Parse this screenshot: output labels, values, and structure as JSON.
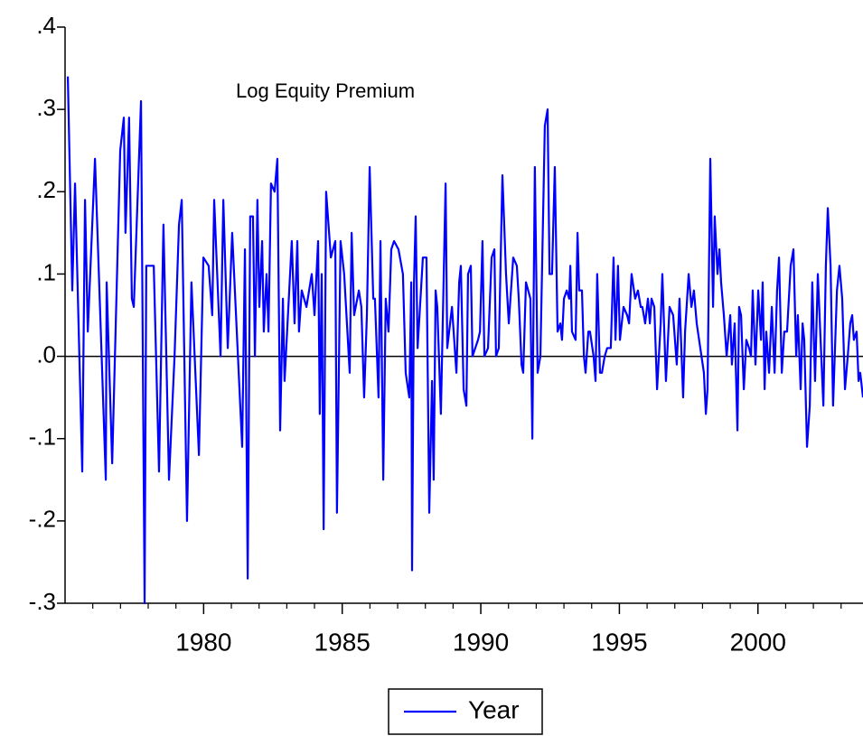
{
  "chart_data": {
    "type": "line",
    "annotation": "Log Equity Premium",
    "legend_box": "bottom-center",
    "zero_line": true,
    "xlim": [
      1975,
      2003.79
    ],
    "xticks": [
      1980,
      1985,
      1990,
      1995,
      2000
    ],
    "x_minor_ticks": [
      1976,
      1977,
      1978,
      1979,
      1981,
      1982,
      1983,
      1984,
      1986,
      1987,
      1988,
      1989,
      1991,
      1992,
      1993,
      1994,
      1996,
      1997,
      1998,
      1999,
      2001,
      2002,
      2003
    ],
    "ylim": [
      -0.3,
      0.4
    ],
    "yticks": [
      {
        "value": 0.4,
        "label": ".4"
      },
      {
        "value": 0.3,
        "label": ".3"
      },
      {
        "value": 0.2,
        "label": ".2"
      },
      {
        "value": 0.1,
        "label": ".1"
      },
      {
        "value": 0,
        "label": ".0"
      },
      {
        "value": -0.1,
        "label": "-.1"
      },
      {
        "value": -0.2,
        "label": "-.2"
      },
      {
        "value": -0.3,
        "label": "-.3"
      }
    ],
    "x": [
      1975.1,
      1975.26,
      1975.36,
      1975.62,
      1975.72,
      1975.82,
      1976.08,
      1976.47,
      1976.5,
      1976.7,
      1976.99,
      1977.12,
      1977.18,
      1977.31,
      1977.41,
      1977.48,
      1977.74,
      1977.87,
      1977.93,
      1978.2,
      1978.39,
      1978.55,
      1978.75,
      1978.95,
      1979.11,
      1979.21,
      1979.4,
      1979.56,
      1979.83,
      1979.99,
      1980.18,
      1980.31,
      1980.38,
      1980.61,
      1980.71,
      1980.87,
      1981.03,
      1981.39,
      1981.49,
      1981.59,
      1981.68,
      1981.78,
      1981.85,
      1981.94,
      1982.01,
      1982.11,
      1982.17,
      1982.27,
      1982.34,
      1982.43,
      1982.56,
      1982.66,
      1982.76,
      1982.86,
      1982.92,
      1983.18,
      1983.28,
      1983.38,
      1983.44,
      1983.54,
      1983.71,
      1983.9,
      1984.0,
      1984.13,
      1984.19,
      1984.26,
      1984.33,
      1984.42,
      1984.59,
      1984.75,
      1984.81,
      1984.94,
      1985.07,
      1985.27,
      1985.34,
      1985.43,
      1985.6,
      1985.69,
      1985.79,
      1985.89,
      1985.99,
      1986.12,
      1986.18,
      1986.31,
      1986.38,
      1986.48,
      1986.57,
      1986.67,
      1986.77,
      1986.87,
      1987.03,
      1987.19,
      1987.29,
      1987.42,
      1987.49,
      1987.52,
      1987.59,
      1987.65,
      1987.72,
      1987.91,
      1988.04,
      1988.14,
      1988.24,
      1988.3,
      1988.37,
      1988.43,
      1988.56,
      1988.73,
      1988.79,
      1988.96,
      1989.12,
      1989.22,
      1989.28,
      1989.38,
      1989.48,
      1989.54,
      1989.64,
      1989.7,
      1989.9,
      1989.97,
      1990.06,
      1990.13,
      1990.26,
      1990.39,
      1990.49,
      1990.55,
      1990.65,
      1990.78,
      1990.91,
      1991.01,
      1991.17,
      1991.3,
      1991.37,
      1991.47,
      1991.53,
      1991.63,
      1991.79,
      1991.86,
      1991.95,
      1992.05,
      1992.15,
      1992.31,
      1992.41,
      1992.48,
      1992.57,
      1992.67,
      1992.77,
      1992.87,
      1992.93,
      1993.0,
      1993.1,
      1993.19,
      1993.23,
      1993.29,
      1993.42,
      1993.49,
      1993.55,
      1993.65,
      1993.72,
      1993.78,
      1993.88,
      1993.94,
      1994.07,
      1994.14,
      1994.2,
      1994.3,
      1994.37,
      1994.47,
      1994.56,
      1994.69,
      1994.79,
      1994.86,
      1994.95,
      1995.02,
      1995.15,
      1995.28,
      1995.35,
      1995.44,
      1995.57,
      1995.67,
      1995.77,
      1995.83,
      1995.93,
      1996.03,
      1996.1,
      1996.16,
      1996.26,
      1996.36,
      1996.49,
      1996.55,
      1996.68,
      1996.81,
      1996.94,
      1997.07,
      1997.17,
      1997.3,
      1997.37,
      1997.5,
      1997.6,
      1997.69,
      1997.79,
      1997.92,
      1998.05,
      1998.12,
      1998.18,
      1998.28,
      1998.38,
      1998.44,
      1998.54,
      1998.61,
      1998.67,
      1998.77,
      1998.87,
      1999.0,
      1999.06,
      1999.16,
      1999.26,
      1999.32,
      1999.39,
      1999.49,
      1999.58,
      1999.68,
      1999.75,
      1999.81,
      1999.91,
      2000.01,
      2000.11,
      2000.17,
      2000.24,
      2000.3,
      2000.4,
      2000.5,
      2000.6,
      2000.69,
      2000.76,
      2000.86,
      2000.95,
      2001.05,
      2001.18,
      2001.28,
      2001.38,
      2001.44,
      2001.54,
      2001.61,
      2001.67,
      2001.77,
      2001.87,
      2001.96,
      2002.06,
      2002.16,
      2002.26,
      2002.36,
      2002.45,
      2002.52,
      2002.62,
      2002.71,
      2002.85,
      2002.94,
      2003.04,
      2003.14,
      2003.24,
      2003.33,
      2003.4,
      2003.46,
      2003.56,
      2003.63,
      2003.69,
      2003.79
    ],
    "series": [
      {
        "name": "Year",
        "color": "#0000ff",
        "values": [
          0.34,
          0.08,
          0.21,
          -0.14,
          0.19,
          0.03,
          0.24,
          -0.15,
          0.09,
          -0.13,
          0.25,
          0.29,
          0.15,
          0.29,
          0.07,
          0.06,
          0.31,
          -0.3,
          0.11,
          0.11,
          -0.14,
          0.16,
          -0.15,
          0,
          0.16,
          0.19,
          -0.2,
          0.09,
          -0.12,
          0.12,
          0.11,
          0.05,
          0.19,
          0,
          0.19,
          0.01,
          0.15,
          -0.11,
          0.13,
          -0.27,
          0.17,
          0.17,
          0,
          0.19,
          0.06,
          0.14,
          0.03,
          0.1,
          0.03,
          0.21,
          0.2,
          0.24,
          -0.09,
          0.07,
          -0.03,
          0.14,
          0.04,
          0.14,
          0.03,
          0.08,
          0.06,
          0.1,
          0.05,
          0.14,
          -0.07,
          0.1,
          -0.21,
          0.2,
          0.12,
          0.14,
          -0.19,
          0.14,
          0.1,
          -0.02,
          0.15,
          0.05,
          0.08,
          0.06,
          -0.05,
          0.05,
          0.23,
          0.07,
          0.07,
          -0.05,
          0.14,
          -0.15,
          0.07,
          0.03,
          0.13,
          0.14,
          0.13,
          0.1,
          -0.02,
          -0.05,
          0.09,
          -0.26,
          0.09,
          0.17,
          0.01,
          0.12,
          0.12,
          -0.19,
          -0.03,
          -0.15,
          0.08,
          0.06,
          -0.07,
          0.21,
          0.01,
          0.06,
          -0.02,
          0.09,
          0.11,
          -0.04,
          -0.06,
          0.1,
          0.11,
          0,
          0.02,
          0.03,
          0.14,
          0,
          0.01,
          0.12,
          0.13,
          0,
          0.01,
          0.22,
          0.1,
          0.04,
          0.12,
          0.11,
          0.07,
          -0.01,
          -0.02,
          0.09,
          0.07,
          -0.1,
          0.23,
          -0.02,
          0,
          0.28,
          0.3,
          0.1,
          0.1,
          0.23,
          0.03,
          0.04,
          0.02,
          0.07,
          0.08,
          0.07,
          0.11,
          0.03,
          0.02,
          0.15,
          0.08,
          0.08,
          0,
          -0.02,
          0.03,
          0.03,
          0,
          -0.03,
          0.1,
          -0.02,
          -0.02,
          0,
          0.01,
          0.01,
          0.12,
          0.02,
          0.11,
          0.02,
          0.06,
          0.05,
          0.04,
          0.1,
          0.07,
          0.08,
          0.06,
          0.06,
          0.04,
          0.07,
          0.04,
          0.07,
          0.06,
          -0.04,
          0.04,
          0.1,
          -0.03,
          0.06,
          0.05,
          -0.01,
          0.07,
          -0.05,
          0.03,
          0.1,
          0.06,
          0.08,
          0.04,
          0.01,
          -0.02,
          -0.07,
          -0.04,
          0.24,
          0.06,
          0.17,
          0.1,
          0.13,
          0.09,
          0.05,
          0,
          0.05,
          -0.01,
          0.04,
          -0.09,
          0.06,
          0.05,
          -0.04,
          0.02,
          0.01,
          0,
          0.08,
          -0.01,
          0.08,
          0.02,
          0.09,
          -0.04,
          0.03,
          -0.02,
          0.06,
          -0.02,
          0.08,
          0.12,
          -0.02,
          0.03,
          0.03,
          0.11,
          0.13,
          0,
          0.05,
          -0.04,
          0.04,
          0.02,
          -0.11,
          -0.06,
          0.09,
          -0.03,
          0.1,
          0.02,
          -0.06,
          0.11,
          0.18,
          0.11,
          -0.06,
          0.08,
          0.11,
          0.07,
          -0.04,
          0,
          0.04,
          0.05,
          0.02,
          0.03,
          -0.03,
          -0.02,
          -0.05
        ]
      }
    ]
  }
}
